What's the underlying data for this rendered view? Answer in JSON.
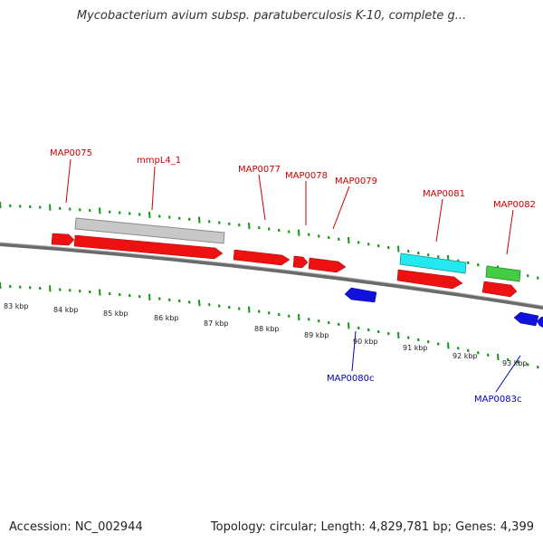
{
  "title": "Mycobacterium avium subsp. paratuberculosis K-10, complete g...",
  "footer": {
    "accession": "Accession: NC_002944",
    "stats": "Topology: circular; Length: 4,829,781 bp; Genes: 4,399"
  },
  "colors": {
    "forward_cds": "#ee1111",
    "reverse_cds": "#1111dd",
    "gray_feature": "#c8c8c8",
    "cyan_feature": "#22e8f0",
    "green_feature": "#44cc44",
    "forward_label": "#cc0000",
    "reverse_label": "#0000bb",
    "backbone": "#888888",
    "ticks": "#119911"
  },
  "scale_labels": [
    "83 kbp",
    "84 kbp",
    "85 kbp",
    "86 kbp",
    "87 kbp",
    "88 kbp",
    "89 kbp",
    "90 kbp",
    "91 kbp",
    "92 kbp",
    "93 kbp"
  ],
  "genes_forward": [
    {
      "label": "MAP0075"
    },
    {
      "label": "mmpL4_1"
    },
    {
      "label": "MAP0077"
    },
    {
      "label": "MAP0078"
    },
    {
      "label": "MAP0079"
    },
    {
      "label": "MAP0081"
    },
    {
      "label": "MAP0082"
    }
  ],
  "genes_reverse": [
    {
      "label": "MAP0080c"
    },
    {
      "label": "MAP0083c"
    }
  ]
}
